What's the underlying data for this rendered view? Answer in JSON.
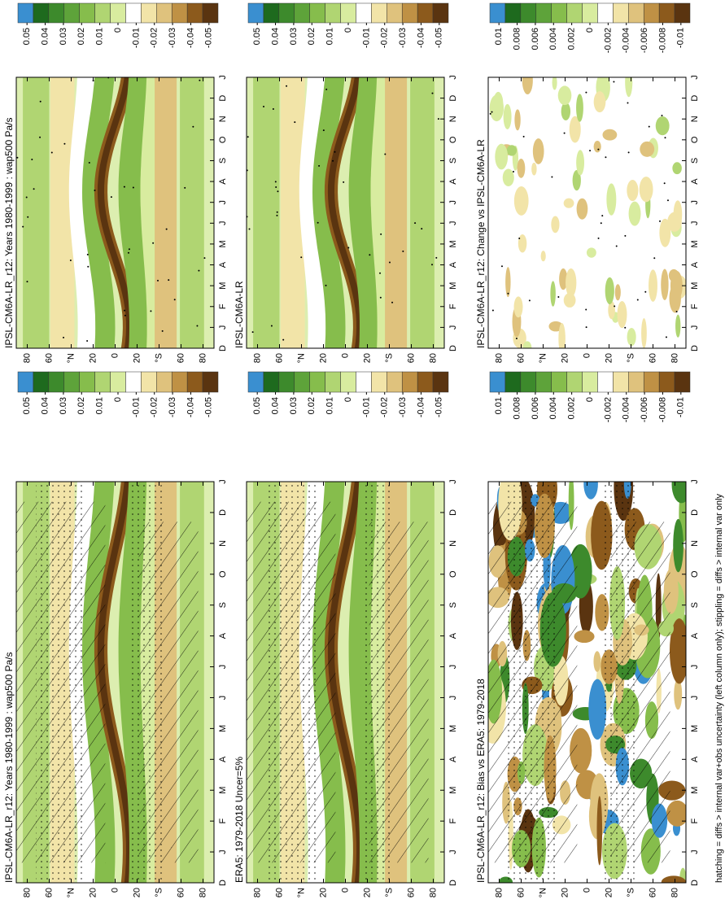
{
  "chart_data": [
    {
      "type": "contour",
      "title": "IPSL-CM6A-LR_r12: Years 1980-1999 : wap500 Pa/s",
      "hatched": true,
      "categories": [
        "D",
        "J",
        "F",
        "M",
        "A",
        "M",
        "J",
        "J",
        "A",
        "S",
        "O",
        "N",
        "D",
        "J"
      ],
      "ylim": [
        -90,
        90
      ],
      "yticks": [
        80,
        60,
        {
          "value": 40,
          "label": "°N"
        },
        20,
        0,
        {
          "value": -20,
          "label": "20"
        },
        {
          "value": -40,
          "label": "°S"
        },
        {
          "value": -60,
          "label": "60"
        },
        {
          "value": -80,
          "label": "80"
        }
      ],
      "clim": [
        0.055,
        -0.055
      ],
      "cticks": [
        0.05,
        0.04,
        0.03,
        0.02,
        0.01,
        0,
        -0.01,
        -0.02,
        -0.03,
        -0.04,
        -0.05
      ],
      "colors": [
        "#3a8fd0",
        "#1e6a1e",
        "#3d8a2c",
        "#5ea33a",
        "#86bd4c",
        "#b0d572",
        "#d8ec9f",
        "#ffffff",
        "#f2e4a8",
        "#dfc27d",
        "#bf9145",
        "#8c5a1c",
        "#5a3410"
      ]
    },
    {
      "type": "contour",
      "title": "ERA5: 1979-2018 Uncer=5%",
      "hatched": true,
      "categories": [
        "D",
        "J",
        "F",
        "M",
        "A",
        "M",
        "J",
        "J",
        "A",
        "S",
        "O",
        "N",
        "D",
        "J"
      ],
      "ylim": [
        -90,
        90
      ],
      "yticks": [
        80,
        60,
        {
          "value": 40,
          "label": "°N"
        },
        20,
        0,
        {
          "value": -20,
          "label": "20"
        },
        {
          "value": -40,
          "label": "°S"
        },
        {
          "value": -60,
          "label": "60"
        },
        {
          "value": -80,
          "label": "80"
        }
      ],
      "clim": [
        0.055,
        -0.055
      ],
      "cticks": [
        0.05,
        0.04,
        0.03,
        0.02,
        0.01,
        0,
        -0.01,
        -0.02,
        -0.03,
        -0.04,
        -0.05
      ],
      "colors": [
        "#3a8fd0",
        "#1e6a1e",
        "#3d8a2c",
        "#5ea33a",
        "#86bd4c",
        "#b0d572",
        "#d8ec9f",
        "#ffffff",
        "#f2e4a8",
        "#dfc27d",
        "#bf9145",
        "#8c5a1c",
        "#5a3410"
      ]
    },
    {
      "type": "contour-diff",
      "title": "IPSL-CM6A-LR_r12: Bias vs ERA5: 1979-2018",
      "hatched": true,
      "categories": [
        "D",
        "J",
        "F",
        "M",
        "A",
        "M",
        "J",
        "J",
        "A",
        "S",
        "O",
        "N",
        "D",
        "J"
      ],
      "ylim": [
        -90,
        90
      ],
      "yticks": [
        80,
        60,
        {
          "value": 40,
          "label": "°N"
        },
        20,
        0,
        {
          "value": -20,
          "label": "20"
        },
        {
          "value": -40,
          "label": "°S"
        },
        {
          "value": -60,
          "label": "60"
        },
        {
          "value": -80,
          "label": "80"
        }
      ],
      "clim": [
        0.011,
        -0.011
      ],
      "cticks": [
        0.01,
        0.008,
        0.006,
        0.004,
        0.002,
        0,
        -0.002,
        -0.004,
        -0.006,
        -0.008,
        -0.01
      ],
      "colors": [
        "#3a8fd0",
        "#1e6a1e",
        "#3d8a2c",
        "#5ea33a",
        "#86bd4c",
        "#b0d572",
        "#d8ec9f",
        "#ffffff",
        "#f2e4a8",
        "#dfc27d",
        "#bf9145",
        "#8c5a1c",
        "#5a3410"
      ]
    },
    {
      "type": "contour",
      "title": "IPSL-CM6A-LR_r12: Years 1980-1999 : wap500 Pa/s",
      "hatched": false,
      "categories": [
        "D",
        "J",
        "F",
        "M",
        "A",
        "M",
        "J",
        "J",
        "A",
        "S",
        "O",
        "N",
        "D",
        "J"
      ],
      "ylim": [
        -90,
        90
      ],
      "yticks": [
        80,
        60,
        {
          "value": 40,
          "label": "°N"
        },
        20,
        0,
        {
          "value": -20,
          "label": "20"
        },
        {
          "value": -40,
          "label": "°S"
        },
        {
          "value": -60,
          "label": "60"
        },
        {
          "value": -80,
          "label": "80"
        }
      ],
      "clim": [
        0.055,
        -0.055
      ],
      "cticks": [
        0.05,
        0.04,
        0.03,
        0.02,
        0.01,
        0,
        -0.01,
        -0.02,
        -0.03,
        -0.04,
        -0.05
      ],
      "colors": [
        "#3a8fd0",
        "#1e6a1e",
        "#3d8a2c",
        "#5ea33a",
        "#86bd4c",
        "#b0d572",
        "#d8ec9f",
        "#ffffff",
        "#f2e4a8",
        "#dfc27d",
        "#bf9145",
        "#8c5a1c",
        "#5a3410"
      ]
    },
    {
      "type": "contour",
      "title": "IPSL-CM6A-LR",
      "hatched": false,
      "categories": [
        "D",
        "J",
        "F",
        "M",
        "A",
        "M",
        "J",
        "J",
        "A",
        "S",
        "O",
        "N",
        "D",
        "J"
      ],
      "ylim": [
        -90,
        90
      ],
      "yticks": [
        80,
        60,
        {
          "value": 40,
          "label": "°N"
        },
        20,
        0,
        {
          "value": -20,
          "label": "20"
        },
        {
          "value": -40,
          "label": "°S"
        },
        {
          "value": -60,
          "label": "60"
        },
        {
          "value": -80,
          "label": "80"
        }
      ],
      "clim": [
        0.055,
        -0.055
      ],
      "cticks": [
        0.05,
        0.04,
        0.03,
        0.02,
        0.01,
        0,
        -0.01,
        -0.02,
        -0.03,
        -0.04,
        -0.05
      ],
      "colors": [
        "#3a8fd0",
        "#1e6a1e",
        "#3d8a2c",
        "#5ea33a",
        "#86bd4c",
        "#b0d572",
        "#d8ec9f",
        "#ffffff",
        "#f2e4a8",
        "#dfc27d",
        "#bf9145",
        "#8c5a1c",
        "#5a3410"
      ]
    },
    {
      "type": "contour-diff",
      "title": "IPSL-CM6A-LR_r12: Change vs IPSL-CM6A-LR",
      "hatched": false,
      "categories": [
        "D",
        "J",
        "F",
        "M",
        "A",
        "M",
        "J",
        "J",
        "A",
        "S",
        "O",
        "N",
        "D",
        "J"
      ],
      "ylim": [
        -90,
        90
      ],
      "yticks": [
        80,
        60,
        {
          "value": 40,
          "label": "°N"
        },
        20,
        0,
        {
          "value": -20,
          "label": "20"
        },
        {
          "value": -40,
          "label": "°S"
        },
        {
          "value": -60,
          "label": "60"
        },
        {
          "value": -80,
          "label": "80"
        }
      ],
      "clim": [
        0.011,
        -0.011
      ],
      "cticks": [
        0.01,
        0.008,
        0.006,
        0.004,
        0.002,
        0,
        -0.002,
        -0.004,
        -0.006,
        -0.008,
        -0.01
      ],
      "colors": [
        "#3a8fd0",
        "#1e6a1e",
        "#3d8a2c",
        "#5ea33a",
        "#86bd4c",
        "#b0d572",
        "#d8ec9f",
        "#ffffff",
        "#f2e4a8",
        "#dfc27d",
        "#bf9145",
        "#8c5a1c",
        "#5a3410"
      ]
    }
  ],
  "footer": "hatching = diffs > internal var+obs uncertainty (left column only); stippling = diffs > internal var only"
}
